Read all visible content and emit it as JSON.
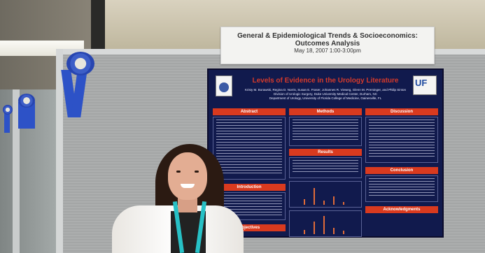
{
  "sign": {
    "title": "General & Epidemiological Trends & Socioeconomics: Outcomes Analysis",
    "date": "May 18, 2007    1:00-3:00pm"
  },
  "poster": {
    "title": "Levels of Evidence in the Urology Literature",
    "authors": "Kristy M. Borawski, Regina D. Norris, Susan E. Fraser, Johannes R. Vieweg, Glenn M. Preminger, and Philip Sinton",
    "affiliation_1": "Division of Urologic Surgery, Duke University Medical Center, Durham, NC",
    "affiliation_2": "Department of Urology, University of Florida College of Medicine, Gainesville, FL",
    "logo_text": "UF",
    "sections": {
      "abstract": "Abstract",
      "methods": "Methods",
      "results": "Results",
      "discussion": "Discussion",
      "introduction": "Introduction",
      "objectives": "Objectives",
      "conclusion": "Conclusion",
      "acknowledgments": "Acknowledgments"
    }
  },
  "colors": {
    "poster_background": "#111a4d",
    "section_header": "#d93a1f",
    "ribbon": "#2d52c7",
    "lanyard": "#27c1c6"
  }
}
